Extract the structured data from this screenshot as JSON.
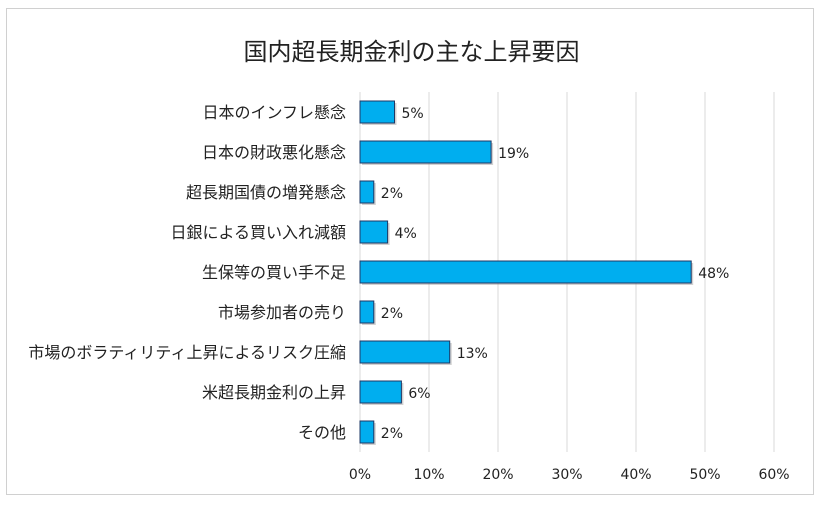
{
  "chart_data": {
    "type": "bar",
    "orientation": "horizontal",
    "title": "国内超長期金利の主な上昇要因",
    "categories": [
      "日本のインフレ懸念",
      "日本の財政悪化懸念",
      "超長期国債の増発懸念",
      "日銀による買い入れ減額",
      "生保等の買い手不足",
      "市場参加者の売り",
      "市場のボラティリティ上昇によるリスク圧縮",
      "米超長期金利の上昇",
      "その他"
    ],
    "values": [
      5,
      19,
      2,
      4,
      48,
      2,
      13,
      6,
      2
    ],
    "data_labels": [
      "5%",
      "19%",
      "2%",
      "4%",
      "48%",
      "2%",
      "13%",
      "6%",
      "2%"
    ],
    "x_ticks": [
      0,
      10,
      20,
      30,
      40,
      50,
      60
    ],
    "x_tick_labels": [
      "0%",
      "10%",
      "20%",
      "30%",
      "40%",
      "50%",
      "60%"
    ],
    "xlim": [
      0,
      60
    ],
    "grid": true,
    "legend": "none",
    "colors": {
      "bar_fill": "#00AEEF",
      "bar_stroke": "#1F3864",
      "grid": "#D9D9D9",
      "text": "#222222"
    }
  }
}
